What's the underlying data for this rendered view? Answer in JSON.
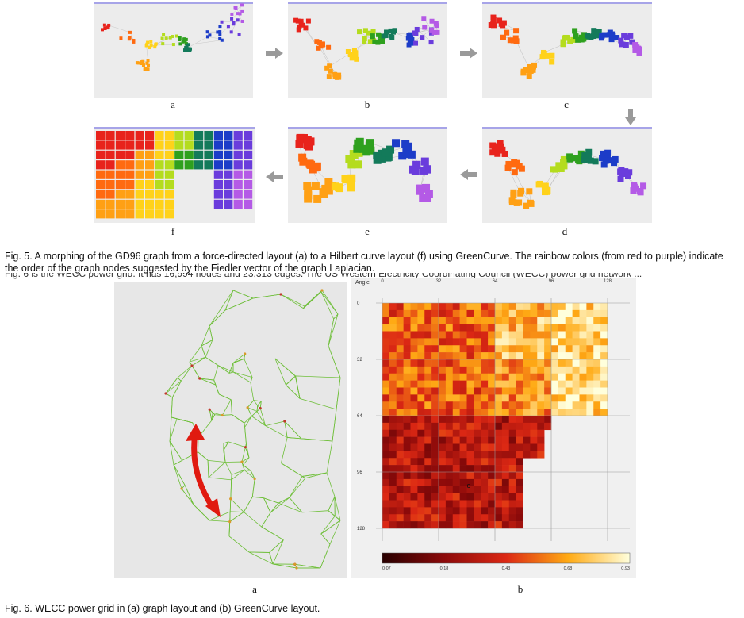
{
  "fig5": {
    "panel_labels": [
      "a",
      "b",
      "c",
      "d",
      "e",
      "f"
    ],
    "caption": "Fig. 5. A morphing of the GD96 graph from a force-directed layout (a) to a Hilbert curve layout (f) using GreenCurve. The rainbow colors (from red to purple) indicate the order of the graph nodes suggested by the Fiedler vector of the graph Laplacian.",
    "overlap_text": "Fig. 6 is the WECC power grid. It has 16,994 nodes and 23,313 edges. The US Western Electricity Coordinating Council (WECC) power grid network ...",
    "colors": [
      "#e8231c",
      "#ff6a10",
      "#ffa014",
      "#ffd21a",
      "#b4dc1e",
      "#2ea01e",
      "#137a5a",
      "#1c3cc8",
      "#6a3cdc",
      "#b45ae6"
    ]
  },
  "fig6": {
    "heatmap": {
      "axis_title": "Angle",
      "x_ticks": [
        "0",
        "32",
        "64",
        "96",
        "128"
      ],
      "y_ticks": [
        "0",
        "32",
        "64",
        "96",
        "128"
      ],
      "colorbar_ticks": [
        "0.07",
        "0.18",
        "0.43",
        "0.68",
        "0.93"
      ],
      "marker": "c"
    },
    "panel_labels": [
      "a",
      "b"
    ],
    "caption": "Fig. 6. WECC power grid in (a) graph layout and (b) GreenCurve layout."
  }
}
